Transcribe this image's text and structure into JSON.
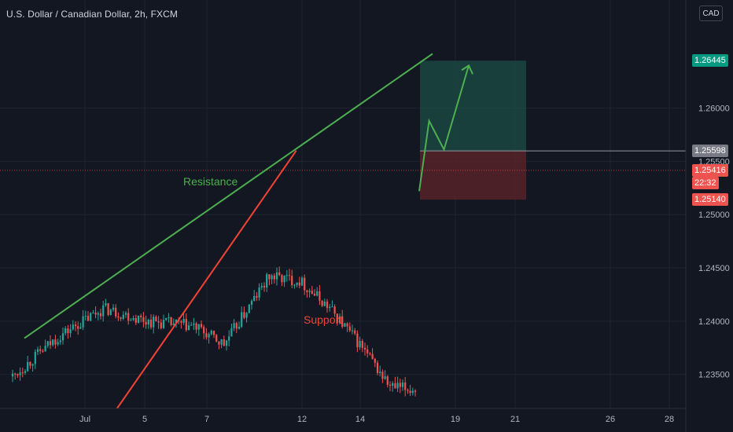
{
  "header": {
    "title": "U.S. Dollar / Canadian Dollar, 2h, FXCM",
    "currency_button": "CAD"
  },
  "colors": {
    "background": "#131722",
    "grid": "#1f2330",
    "up": "#26a69a",
    "down": "#ef5350",
    "resistance": "#4caf50",
    "support": "#f44336",
    "profit_zone": "#1b4a44",
    "loss_zone": "#5a2328",
    "entry_badge": "#787b86",
    "target_badge": "#089981"
  },
  "chart_data": {
    "type": "candlestick",
    "title": "U.S. Dollar / Canadian Dollar, 2h, FXCM",
    "x_tick_labels": [
      "Jul",
      "5",
      "7",
      "12",
      "14",
      "19",
      "21",
      "26",
      "28"
    ],
    "y_tick_labels": [
      "1.23500",
      "1.24000",
      "1.24500",
      "1.25000",
      "1.25500",
      "1.26000"
    ],
    "ylim": [
      1.2318,
      1.2672
    ],
    "grid": true,
    "price_badges": {
      "target": "1.26445",
      "entry": "1.25598",
      "current_price": "1.25416",
      "countdown": "22:32",
      "stop": "1.25140"
    },
    "annotations": [
      {
        "text": "Resistance",
        "color": "green"
      },
      {
        "text": "Support",
        "color": "red"
      }
    ],
    "trend_lines": [
      {
        "name": "Resistance",
        "from": [
          0,
          1.2384
        ],
        "to": [
          1,
          1.2651
        ]
      },
      {
        "name": "Support",
        "from": [
          0.227,
          1.2318
        ],
        "to": [
          0.666,
          1.256
        ]
      }
    ],
    "position": {
      "type": "long",
      "entry": 1.25598,
      "target": 1.26445,
      "stop": 1.2514
    },
    "projection": [
      [
        0,
        1.2522
      ],
      [
        0.2,
        1.2588
      ],
      [
        0.5,
        1.2561
      ],
      [
        1,
        1.264
      ]
    ],
    "anchors": [
      [
        0,
        1.2348
      ],
      [
        6,
        1.2385
      ],
      [
        12,
        1.2412
      ],
      [
        18,
        1.24
      ],
      [
        24,
        1.2395
      ],
      [
        28,
        1.2378
      ],
      [
        34,
        1.2442
      ],
      [
        38,
        1.2438
      ],
      [
        42,
        1.2412
      ],
      [
        46,
        1.2378
      ],
      [
        50,
        1.2338
      ],
      [
        54,
        1.2335
      ],
      [
        58,
        1.2318
      ],
      [
        62,
        1.2402
      ],
      [
        66,
        1.2495
      ],
      [
        70,
        1.2475
      ],
      [
        74,
        1.244
      ],
      [
        78,
        1.25
      ],
      [
        82,
        1.2522
      ],
      [
        86,
        1.2588
      ],
      [
        89,
        1.258
      ],
      [
        92,
        1.2548
      ],
      [
        96,
        1.2532
      ],
      [
        100,
        1.2505
      ],
      [
        104,
        1.2478
      ],
      [
        108,
        1.245
      ],
      [
        112,
        1.2462
      ],
      [
        116,
        1.2472
      ],
      [
        120,
        1.2488
      ],
      [
        124,
        1.247
      ],
      [
        128,
        1.2455
      ],
      [
        132,
        1.2452
      ],
      [
        136,
        1.2532
      ],
      [
        140,
        1.2528
      ],
      [
        144,
        1.2518
      ],
      [
        147,
        1.2465
      ],
      [
        150,
        1.2518
      ],
      [
        154,
        1.253
      ],
      [
        158,
        1.252
      ],
      [
        161,
        1.2548
      ]
    ]
  }
}
